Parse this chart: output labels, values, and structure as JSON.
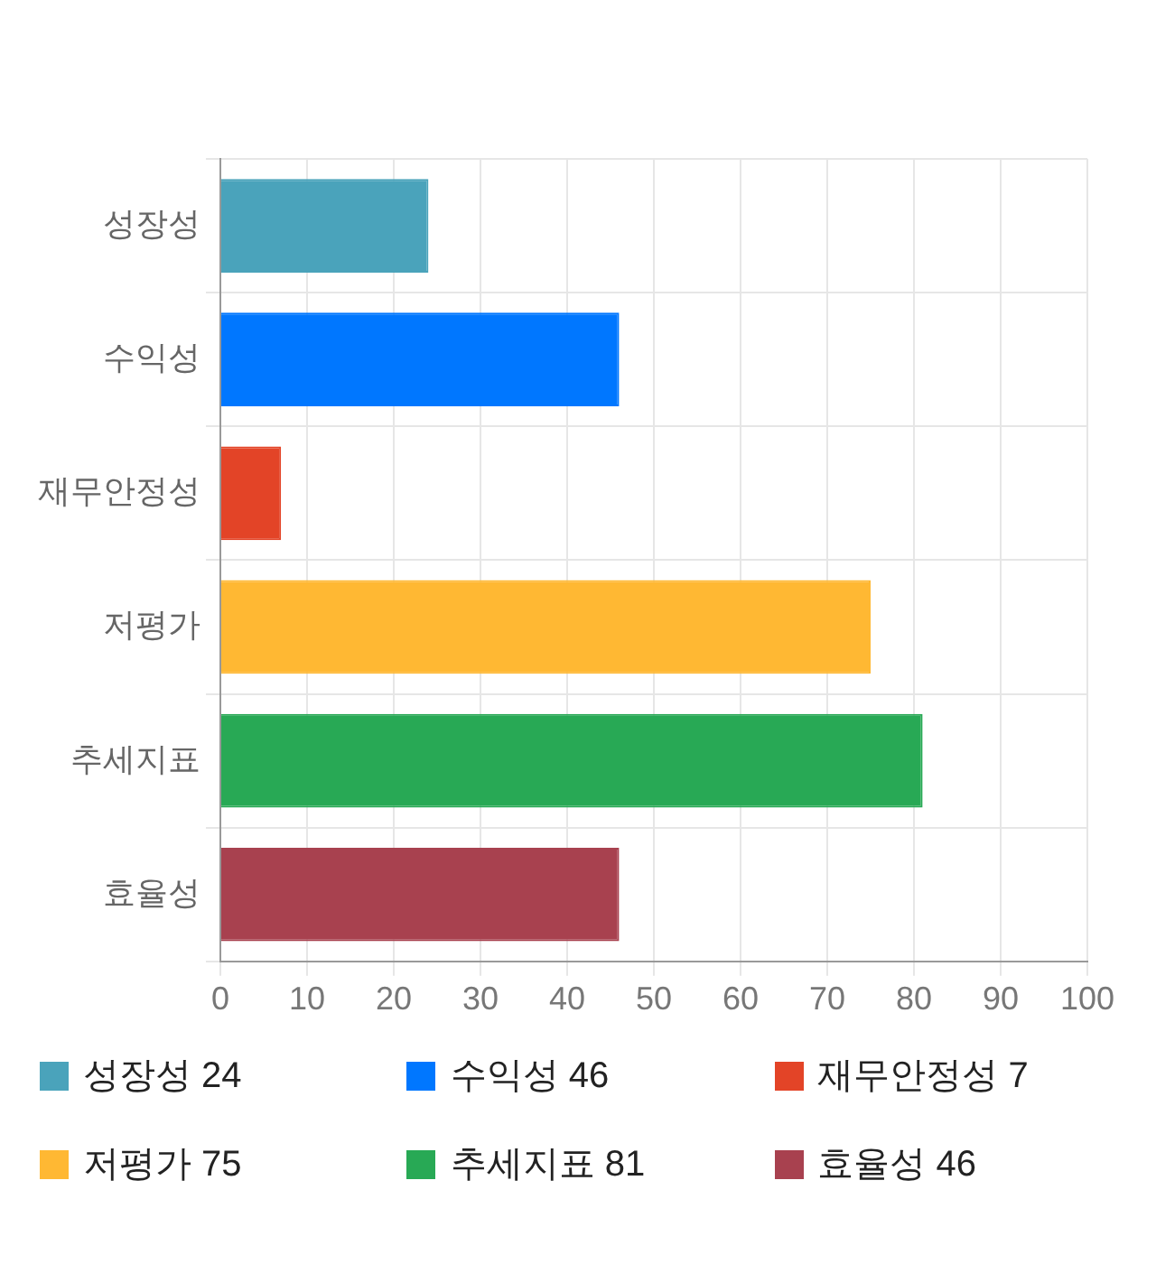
{
  "chart_data": {
    "type": "bar",
    "orientation": "horizontal",
    "categories": [
      "성장성",
      "수익성",
      "재무안정성",
      "저평가",
      "추세지표",
      "효율성"
    ],
    "values": [
      24,
      46,
      7,
      75,
      81,
      46
    ],
    "colors": [
      "#4aa3bb",
      "#0077ff",
      "#e34427",
      "#ffb833",
      "#28a955",
      "#a8414f"
    ],
    "annotations": [
      "성장성 24",
      "수익성 46",
      "재무안정성 7",
      "저평가 75",
      "추세지표 81",
      "효율성 46"
    ],
    "xlim": [
      0,
      100
    ],
    "xticks": [
      0,
      10,
      20,
      30,
      40,
      50,
      60,
      70,
      80,
      90,
      100
    ],
    "grid": true
  }
}
